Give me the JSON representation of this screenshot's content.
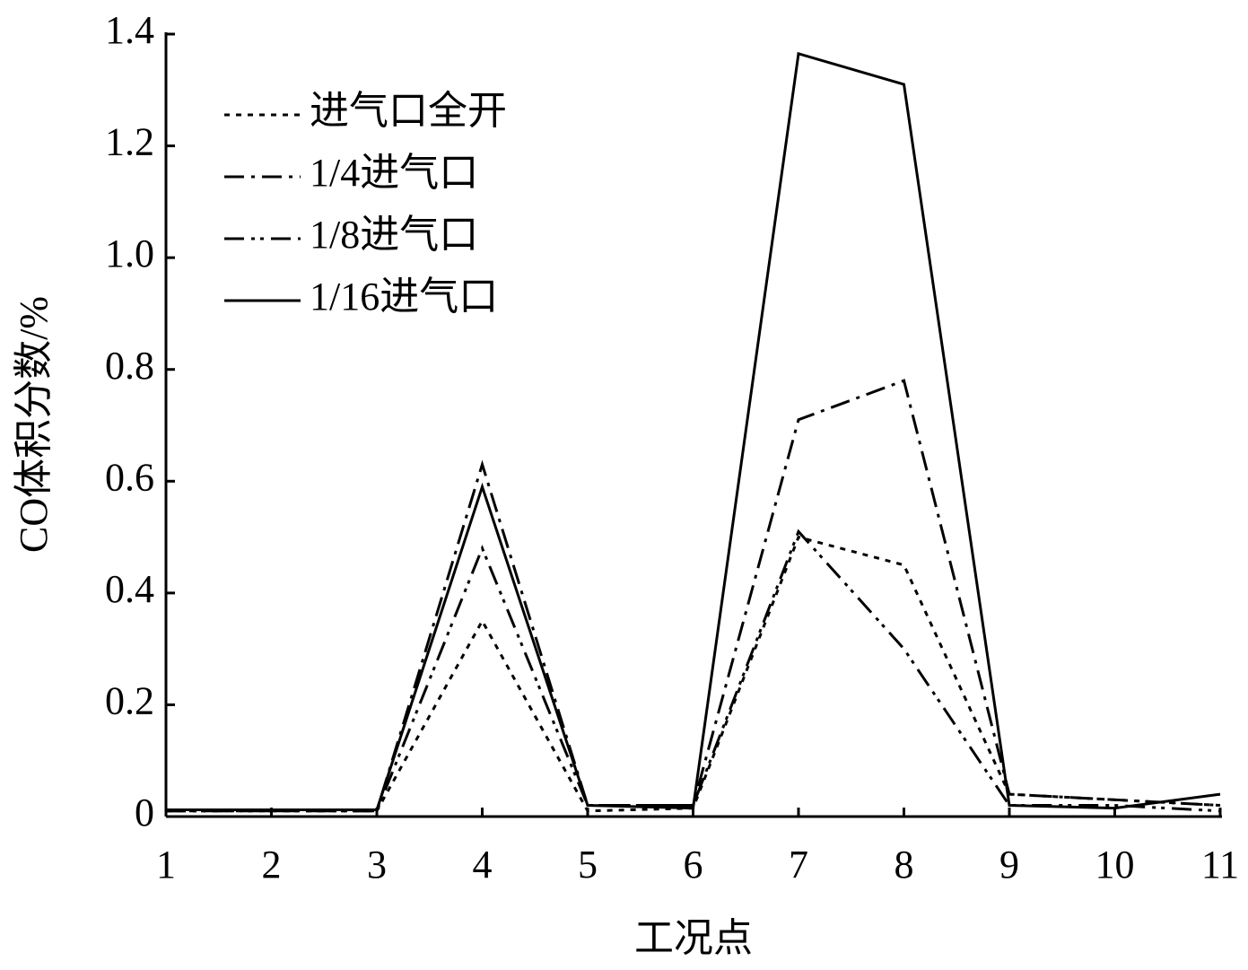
{
  "chart_data": {
    "type": "line",
    "xlabel": "工况点",
    "ylabel": "CO体积分数/%",
    "x": [
      1,
      2,
      3,
      4,
      5,
      6,
      7,
      8,
      9,
      10,
      11
    ],
    "xlim": [
      1,
      11
    ],
    "xticks": [
      1,
      2,
      3,
      4,
      5,
      6,
      7,
      8,
      9,
      10,
      11
    ],
    "ylim": [
      0,
      1.4
    ],
    "yticks": [
      0,
      0.2,
      0.4,
      0.6,
      0.8,
      {
        "value": 1,
        "label": "1.0"
      },
      1.2,
      1.4
    ],
    "legend": "upper left",
    "series": [
      {
        "name": "进气口全开",
        "color": "#000000",
        "dash": "6,7",
        "values": [
          0.01,
          0.01,
          0.01,
          0.35,
          0.01,
          0.015,
          0.5,
          0.45,
          0.04,
          0.03,
          0.02
        ]
      },
      {
        "name": "1/4进气口",
        "color": "#000000",
        "dash": "22,8,4,8",
        "values": [
          0.01,
          0.01,
          0.01,
          0.63,
          0.02,
          0.02,
          0.71,
          0.78,
          0.04,
          0.03,
          0.02
        ]
      },
      {
        "name": "1/8进气口",
        "color": "#000000",
        "dash": "22,8,4,6,4,8",
        "values": [
          0.01,
          0.01,
          0.01,
          0.48,
          0.02,
          0.02,
          0.51,
          0.3,
          0.02,
          0.02,
          0.01
        ]
      },
      {
        "name": "1/16进气口",
        "color": "#000000",
        "dash": "none",
        "values": [
          0.012,
          0.012,
          0.012,
          0.59,
          0.02,
          0.015,
          1.365,
          1.31,
          0.02,
          0.015,
          0.04
        ]
      }
    ]
  }
}
